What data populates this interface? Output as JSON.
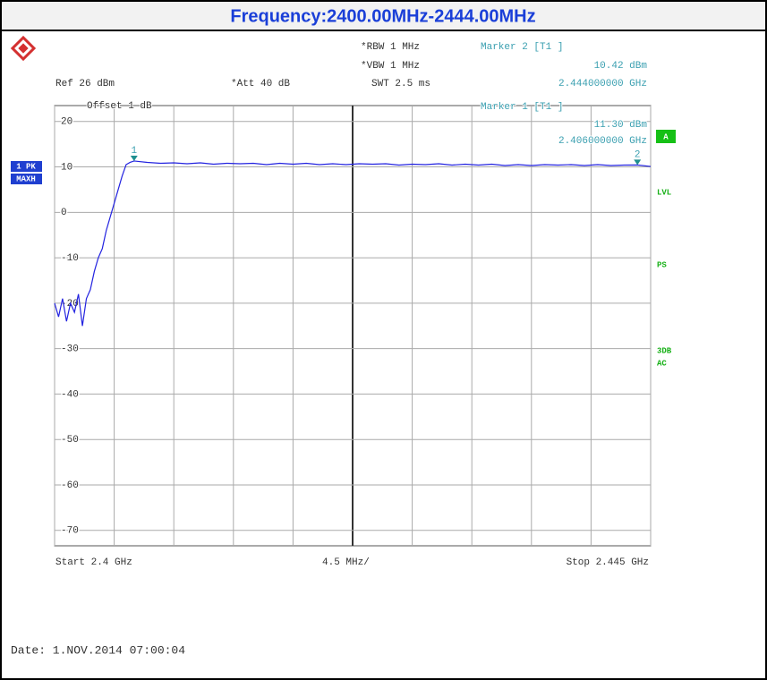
{
  "chart_data": {
    "type": "line",
    "title": "Frequency:2400.00MHz-2444.00MHz",
    "header": {
      "rbw": "*RBW 1 MHz",
      "vbw": "*VBW 1 MHz",
      "swt": "SWT 2.5 ms",
      "ref": "Ref 26 dBm",
      "att": "*Att 40 dB",
      "offset": "Offset 1 dB",
      "marker2_title": "Marker 2 [T1 ]",
      "marker2_level": "10.42 dBm",
      "marker2_freq": "2.444000000 GHz",
      "marker1_title": "Marker 1 [T1 ]",
      "marker1_level": "11.30 dBm",
      "marker1_freq": "2.406000000 GHz"
    },
    "side_labels": {
      "trace1": "1 PK",
      "trace2": "MAXH",
      "a": "A",
      "lvl": "LVL",
      "ps": "PS",
      "db3": "3DB",
      "ac": "AC"
    },
    "footer": {
      "start": "Start 2.4 GHz",
      "span": "4.5 MHz/",
      "stop": "Stop 2.445 GHz",
      "date": "Date: 1.NOV.2014  07:00:04"
    },
    "x": [
      2400.0,
      2400.3,
      2400.6,
      2400.9,
      2401.2,
      2401.5,
      2401.8,
      2402.1,
      2402.4,
      2402.7,
      2403.0,
      2403.3,
      2403.6,
      2403.9,
      2404.2,
      2404.5,
      2404.8,
      2405.1,
      2405.4,
      2405.7,
      2406.0,
      2407,
      2408,
      2409,
      2410,
      2411,
      2412,
      2413,
      2414,
      2415,
      2416,
      2417,
      2418,
      2419,
      2420,
      2421,
      2422,
      2423,
      2424,
      2425,
      2426,
      2427,
      2428,
      2429,
      2430,
      2431,
      2432,
      2433,
      2434,
      2435,
      2436,
      2437,
      2438,
      2439,
      2440,
      2441,
      2442,
      2443,
      2444,
      2445
    ],
    "series": [
      {
        "name": "1 PK MAXH",
        "color": "#2323e0",
        "values": [
          -20,
          -23,
          -19,
          -24,
          -20,
          -22,
          -18,
          -25,
          -19,
          -17,
          -13,
          -10,
          -8,
          -4,
          -1,
          2,
          5,
          8,
          10.5,
          11.0,
          11.3,
          11.0,
          10.8,
          10.9,
          10.7,
          10.9,
          10.6,
          10.8,
          10.7,
          10.8,
          10.5,
          10.8,
          10.6,
          10.8,
          10.5,
          10.7,
          10.5,
          10.7,
          10.6,
          10.7,
          10.4,
          10.6,
          10.5,
          10.7,
          10.4,
          10.6,
          10.4,
          10.6,
          10.3,
          10.5,
          10.3,
          10.5,
          10.4,
          10.5,
          10.3,
          10.5,
          10.3,
          10.4,
          10.42,
          10.1
        ]
      }
    ],
    "markers": [
      {
        "label": "1",
        "x": 2406,
        "value": 11.3
      },
      {
        "label": "2",
        "x": 2444,
        "value": 10.42
      }
    ],
    "xlim": [
      2400,
      2445
    ],
    "xticks": [
      2400,
      2404.5,
      2409,
      2413.5,
      2418,
      2422.5,
      2427,
      2431.5,
      2436,
      2440.5,
      2445
    ],
    "ylim": [
      -73.4,
      23.5
    ],
    "yticks": [
      20,
      10,
      0,
      -10,
      -20,
      -30,
      -40,
      -50,
      -60,
      -70
    ],
    "grid": true
  }
}
